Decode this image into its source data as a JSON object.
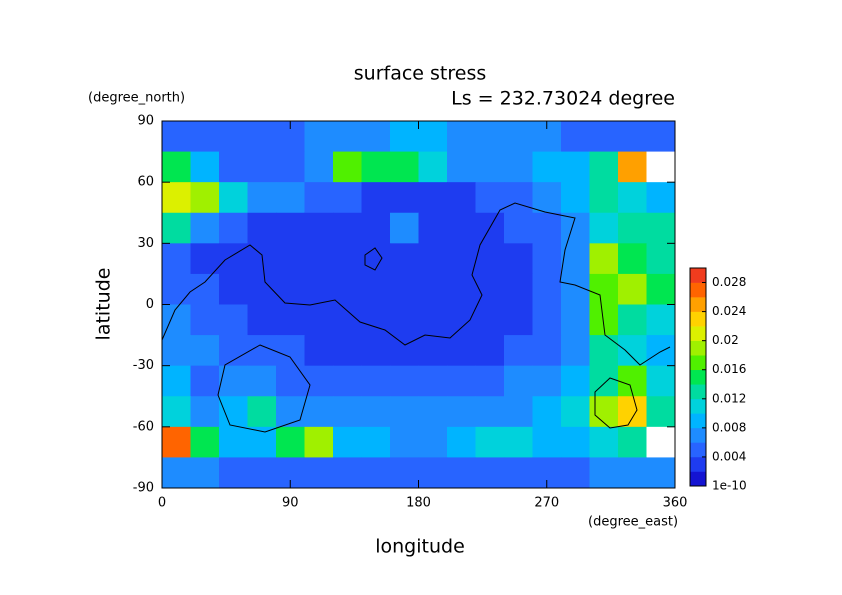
{
  "chart_data": {
    "type": "heatmap",
    "title": "surface stress",
    "subtitle": "Ls = 232.73024 degree",
    "x_label": "longitude",
    "x_unit": "(degree_east)",
    "y_label": "latitude",
    "y_unit": "(degree_north)",
    "x": [
      10,
      30,
      50,
      70,
      90,
      110,
      130,
      150,
      170,
      190,
      210,
      230,
      250,
      270,
      290,
      310,
      330,
      350
    ],
    "y": [
      82.5,
      67.5,
      52.5,
      37.5,
      22.5,
      7.5,
      -7.5,
      -22.5,
      -37.5,
      -52.5,
      -67.5,
      -82.5
    ],
    "values": [
      [
        0.005,
        0.005,
        0.004,
        0.004,
        0.005,
        0.006,
        0.007,
        0.007,
        0.008,
        0.008,
        0.007,
        0.006,
        0.006,
        0.006,
        0.005,
        0.005,
        0.004,
        0.004
      ],
      [
        0.014,
        0.008,
        0.005,
        0.004,
        0.005,
        0.006,
        0.016,
        0.014,
        0.014,
        0.01,
        0.006,
        0.006,
        0.006,
        0.008,
        0.008,
        0.012,
        0.024,
        0.032
      ],
      [
        0.02,
        0.018,
        0.01,
        0.006,
        0.006,
        0.004,
        0.004,
        0.003,
        0.003,
        0.003,
        0.003,
        0.004,
        0.005,
        0.006,
        0.008,
        0.012,
        0.01,
        0.008
      ],
      [
        0.012,
        0.006,
        0.004,
        0.003,
        0.003,
        0.002,
        0.002,
        0.003,
        0.006,
        0.003,
        0.002,
        0.003,
        0.004,
        0.004,
        0.006,
        0.01,
        0.012,
        0.012
      ],
      [
        0.004,
        0.003,
        0.003,
        0.003,
        0.002,
        0.002,
        0.002,
        0.002,
        0.002,
        0.002,
        0.002,
        0.002,
        0.003,
        0.004,
        0.006,
        0.018,
        0.014,
        0.012
      ],
      [
        0.004,
        0.004,
        0.003,
        0.003,
        0.002,
        0.002,
        0.002,
        0.002,
        0.002,
        0.002,
        0.002,
        0.003,
        0.003,
        0.004,
        0.006,
        0.016,
        0.018,
        0.014
      ],
      [
        0.006,
        0.005,
        0.004,
        0.003,
        0.003,
        0.002,
        0.002,
        0.002,
        0.002,
        0.002,
        0.002,
        0.003,
        0.003,
        0.004,
        0.006,
        0.016,
        0.012,
        0.01
      ],
      [
        0.006,
        0.006,
        0.005,
        0.004,
        0.004,
        0.003,
        0.003,
        0.003,
        0.003,
        0.003,
        0.003,
        0.003,
        0.004,
        0.005,
        0.006,
        0.012,
        0.01,
        0.008
      ],
      [
        0.008,
        0.005,
        0.006,
        0.006,
        0.005,
        0.004,
        0.004,
        0.005,
        0.004,
        0.004,
        0.005,
        0.005,
        0.006,
        0.006,
        0.008,
        0.012,
        0.016,
        0.01
      ],
      [
        0.01,
        0.006,
        0.008,
        0.012,
        0.006,
        0.006,
        0.006,
        0.006,
        0.006,
        0.006,
        0.006,
        0.006,
        0.006,
        0.008,
        0.01,
        0.018,
        0.022,
        0.012
      ],
      [
        0.026,
        0.014,
        0.008,
        0.008,
        0.014,
        0.018,
        0.008,
        0.008,
        0.006,
        0.006,
        0.008,
        0.01,
        0.01,
        0.008,
        0.008,
        0.01,
        0.012,
        0.032
      ],
      [
        0.006,
        0.006,
        0.005,
        0.005,
        0.005,
        0.005,
        0.005,
        0.005,
        0.005,
        0.005,
        0.005,
        0.005,
        0.005,
        0.005,
        0.005,
        0.006,
        0.006,
        0.006
      ]
    ],
    "xlim": [
      0,
      360
    ],
    "xticks": [
      0,
      90,
      180,
      270,
      360
    ],
    "ylim": [
      -90,
      90
    ],
    "yticks": [
      -90,
      -60,
      -30,
      0,
      30,
      60,
      90
    ],
    "clim": [
      0,
      0.03
    ],
    "cticks": [
      {
        "value": 1e-10,
        "label": "1e-10"
      },
      0.004,
      0.008,
      0.012,
      0.016,
      0.02,
      0.024,
      0.028
    ],
    "colors": [
      "#1414d2",
      "#1e3cf0",
      "#2864ff",
      "#1e8cff",
      "#00b4ff",
      "#00d2dc",
      "#00dca0",
      "#00e650",
      "#50f000",
      "#a0f000",
      "#dcf000",
      "#ffd200",
      "#ffa000",
      "#ff6400",
      "#f03c1e"
    ],
    "over_color": "#ffffff"
  }
}
